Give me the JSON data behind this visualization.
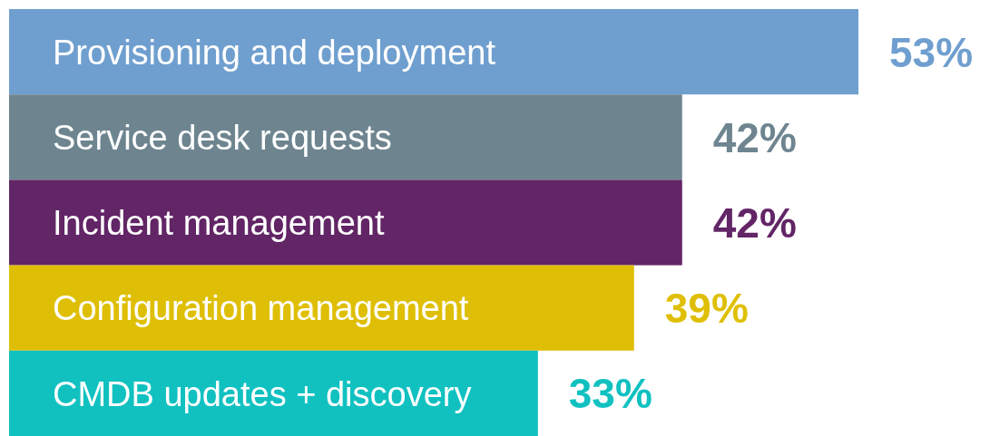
{
  "chart_data": {
    "type": "bar",
    "orientation": "horizontal",
    "categories": [
      "Provisioning and deployment",
      "Service desk requests",
      "Incident management",
      "Configuration management",
      "CMDB updates + discovery"
    ],
    "values": [
      53,
      42,
      42,
      39,
      33
    ],
    "colors": [
      "#6f9fcf",
      "#6e8590",
      "#622566",
      "#dfbf05",
      "#10c1c0"
    ],
    "value_labels": [
      "53%",
      "42%",
      "42%",
      "39%",
      "33%"
    ]
  }
}
